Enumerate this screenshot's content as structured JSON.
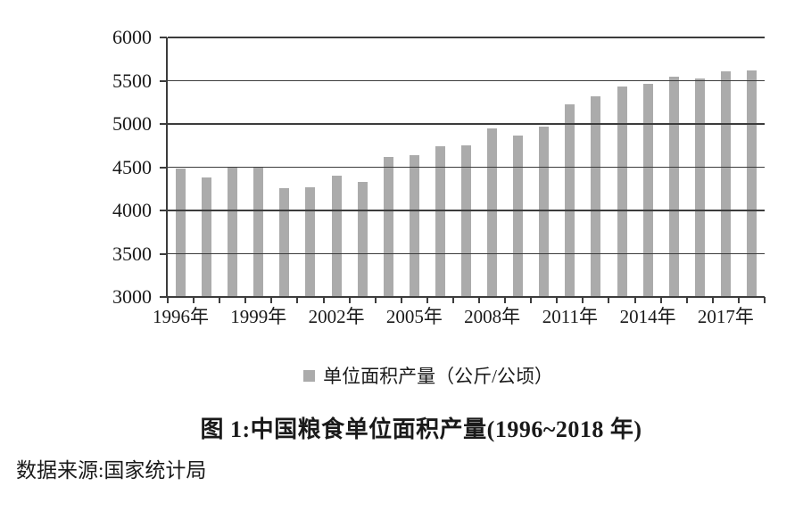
{
  "figure": {
    "background": "#FFFFFF",
    "title": "图 1:中国粮食单位面积产量(1996~2018 年)",
    "source_note": "数据来源:国家统计局",
    "legend_label": "单位面积产量（公斤/公顷）"
  },
  "chart_data": {
    "type": "bar",
    "title": "图 1:中国粮食单位面积产量(1996~2018 年)",
    "source_note": "数据来源:国家统计局",
    "xlabel": "",
    "ylabel": "",
    "ylim": [
      3000,
      6000
    ],
    "yticks": [
      3000,
      3500,
      4000,
      4500,
      5000,
      5500,
      6000
    ],
    "grid": true,
    "legend_position": "bottom",
    "bar_color": "#ABABAB",
    "axis_color": "#3C3C3C",
    "years": [
      1996,
      1997,
      1998,
      1999,
      2000,
      2001,
      2002,
      2003,
      2004,
      2005,
      2006,
      2007,
      2008,
      2009,
      2010,
      2011,
      2012,
      2013,
      2014,
      2015,
      2016,
      2017,
      2018
    ],
    "xtick_labels": [
      "1996年",
      "1999年",
      "2002年",
      "2005年",
      "2008年",
      "2011年",
      "2014年",
      "2017年"
    ],
    "xtick_step": 3,
    "series": [
      {
        "name": "单位面积产量（公斤/公顷）",
        "values": [
          4483,
          4377,
          4502,
          4493,
          4261,
          4267,
          4399,
          4333,
          4620,
          4642,
          4742,
          4748,
          4951,
          4871,
          4974,
          5227,
          5323,
          5430,
          5467,
          5546,
          5528,
          5607,
          5621
        ]
      }
    ]
  }
}
